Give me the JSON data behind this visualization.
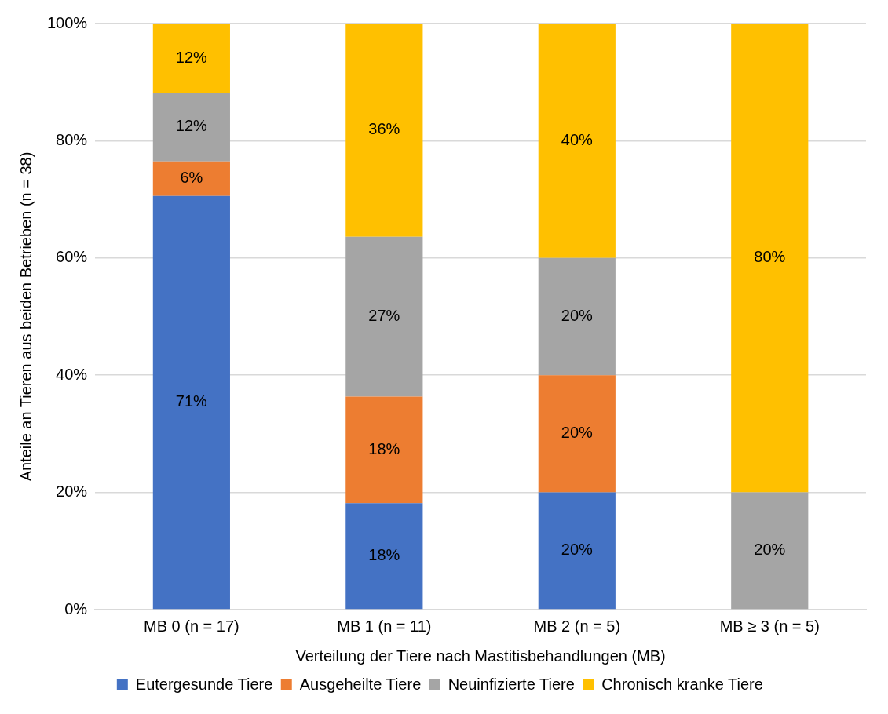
{
  "chart_data": {
    "type": "bar",
    "stacked": true,
    "xlabel": "Verteilung der Tiere nach Mastitisbehandlungen (MB)",
    "ylabel": "Anteile an Tieren aus beiden Betrieben (n = 38)",
    "categories": [
      "MB 0 (n = 17)",
      "MB 1 (n = 11)",
      "MB 2 (n = 5)",
      "MB ≥ 3 (n = 5)"
    ],
    "series": [
      {
        "name": "Eutergesunde Tiere",
        "color": "#4472c4",
        "values": [
          70.59,
          18.18,
          20,
          0
        ],
        "value_labels": [
          "71%",
          "18%",
          "20%",
          null
        ]
      },
      {
        "name": "Ausgeheilte Tiere",
        "color": "#ed7d31",
        "values": [
          5.88,
          18.18,
          20,
          0
        ],
        "value_labels": [
          "6%",
          "18%",
          "20%",
          null
        ]
      },
      {
        "name": "Neuinfizierte Tiere",
        "color": "#a5a5a5",
        "values": [
          11.76,
          27.27,
          20,
          20
        ],
        "value_labels": [
          "12%",
          "27%",
          "20%",
          "20%"
        ]
      },
      {
        "name": "Chronisch kranke Tiere",
        "color": "#ffc000",
        "values": [
          11.76,
          36.36,
          40,
          80
        ],
        "value_labels": [
          "12%",
          "36%",
          "40%",
          "80%"
        ]
      }
    ],
    "ylim": [
      0,
      100
    ],
    "yticks": [
      {
        "value": 0,
        "label": "0%"
      },
      {
        "value": 20,
        "label": "20%"
      },
      {
        "value": 40,
        "label": "40%"
      },
      {
        "value": 60,
        "label": "60%"
      },
      {
        "value": 80,
        "label": "80%"
      },
      {
        "value": 100,
        "label": "100%"
      }
    ],
    "grid": "y",
    "legend": "bottom"
  }
}
